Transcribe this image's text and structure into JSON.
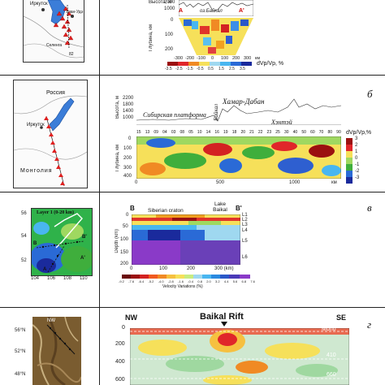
{
  "rows": [
    {
      "letter": "",
      "map_labels": {
        "irkutsk": "Иркутск",
        "ulan_ude": "Улан-Удэ",
        "selenga": "Селенга",
        "station": "82"
      },
      "chart": {
        "ylabel_top": "Высота, м",
        "ylabel_bottom": "Глубина, км",
        "yticks_top": [
          "2000",
          "1000"
        ],
        "yticks_bottom": [
          "0",
          "100",
          "200"
        ],
        "xticks": [
          "-300",
          "-200",
          "-100",
          "0",
          "100",
          "200",
          "300",
          "км"
        ],
        "marker_left": "A",
        "marker_right": "A'",
        "place_label": "оз.Байкал",
        "colorbar_ticks": [
          "-3.5",
          "-2.5",
          "-1.5",
          "-0.5",
          "0.5",
          "1.5",
          "2.5",
          "3.5"
        ],
        "colorbar_label": "dVp/Vp, %"
      }
    },
    {
      "letter": "б",
      "map_labels": {
        "russia": "Россия",
        "irkutsk": "Иркутск",
        "mongolia": "Монголия"
      },
      "chart": {
        "ylabel_top": "Высота, м",
        "yticks_top": [
          "2200",
          "1800",
          "1400",
          "1000"
        ],
        "region_1": "Сибирская платформа",
        "region_2": "Байкал",
        "region_3": "Хамар-Дабан",
        "region_4": "Хэнтэй",
        "stations": [
          "15",
          "13",
          "09",
          "04",
          "03",
          "08",
          "05",
          "10",
          "14",
          "16",
          "19",
          "18",
          "20",
          "21",
          "22",
          "23",
          "25",
          "30",
          "40",
          "50",
          "60",
          "70",
          "80",
          "90"
        ],
        "ylabel_bottom": "Глубина, км",
        "yticks_bottom": [
          "0",
          "100",
          "200",
          "300",
          "400"
        ],
        "xticks": [
          "0",
          "500",
          "1000",
          "км"
        ],
        "colorbar_title": "dVp/Vp,%",
        "colorbar_ticks": [
          "3",
          "2",
          "1",
          "0",
          "-1",
          "-2",
          "-3"
        ]
      }
    },
    {
      "letter": "в",
      "map_labels": {
        "layer": "Layer 1 (0-20 km)",
        "lat_ticks": [
          "56",
          "54",
          "52"
        ],
        "lon_ticks": [
          "104",
          "106",
          "108",
          "110"
        ],
        "b_left": "B",
        "b_right": "B'",
        "a_left": "A",
        "a_right": "A'"
      },
      "chart": {
        "b_left": "B",
        "b_right": "B'",
        "label_craton": "Siberian craton",
        "label_lake": "Lake Baikal",
        "ylabel": "Depth (km)",
        "yticks": [
          "0",
          "50",
          "100",
          "150",
          "200"
        ],
        "xticks": [
          "0",
          "100",
          "200",
          "300 (km)"
        ],
        "layers": [
          "L1",
          "L2",
          "L3",
          "L4",
          "L5",
          "L6"
        ],
        "colorbar_ticks": [
          "-9.2",
          "-7.6",
          "-6.4",
          "-5.2",
          "-4.0",
          "-2.8",
          "-1.6",
          "-0.4",
          "0.8",
          "2.0",
          "3.2",
          "4.4",
          "5.6",
          "6.8",
          "7.6"
        ],
        "colorbar_label": "Velocity Variations (%)"
      }
    },
    {
      "letter": "г",
      "map_labels": {
        "lat_ticks": [
          "56°N",
          "52°N",
          "48°N"
        ],
        "nw": "NW"
      },
      "chart": {
        "nw": "NW",
        "title": "Baikal Rift",
        "se": "SE",
        "yticks": [
          "0",
          "200",
          "400",
          "600"
        ],
        "moho": "Moho",
        "d410": "410",
        "d660": "660"
      }
    }
  ]
}
